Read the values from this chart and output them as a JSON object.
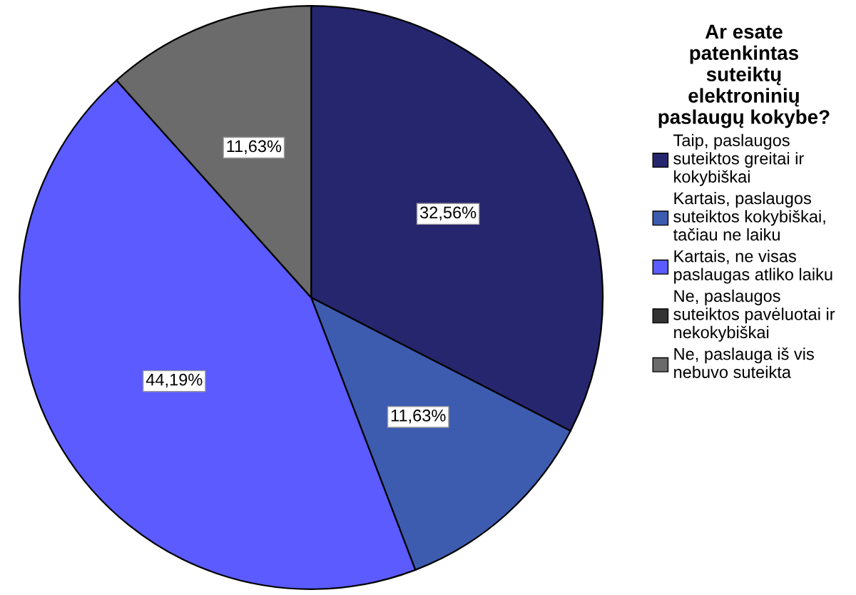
{
  "chart_data": {
    "type": "pie",
    "legend_title": "Ar esate\npatenkintas\nsuteiktų\nelektroninių\npaslaugų kokybe?",
    "categories": [
      "Taip, paslaugos\nsuteiktos greitai ir\nkokybiškai",
      "Kartais, paslaugos\nsuteiktos kokybiškai,\ntačiau ne laiku",
      "Kartais, ne visas\npaslaugas atliko laiku",
      "Ne, paslaugos\nsuteiktos pavėluotai ir\nnekokybiškai",
      "Ne, paslauga iš vis\nnebuvo suteikta"
    ],
    "values": [
      32.56,
      11.63,
      44.19,
      0,
      11.63
    ],
    "value_labels": [
      "32,56%",
      "11,63%",
      "44,19%",
      null,
      "11,63%"
    ],
    "colors": [
      "#26266e",
      "#3d5cb0",
      "#5b5bff",
      "#333333",
      "#6b6b6b"
    ],
    "legend": "right"
  }
}
